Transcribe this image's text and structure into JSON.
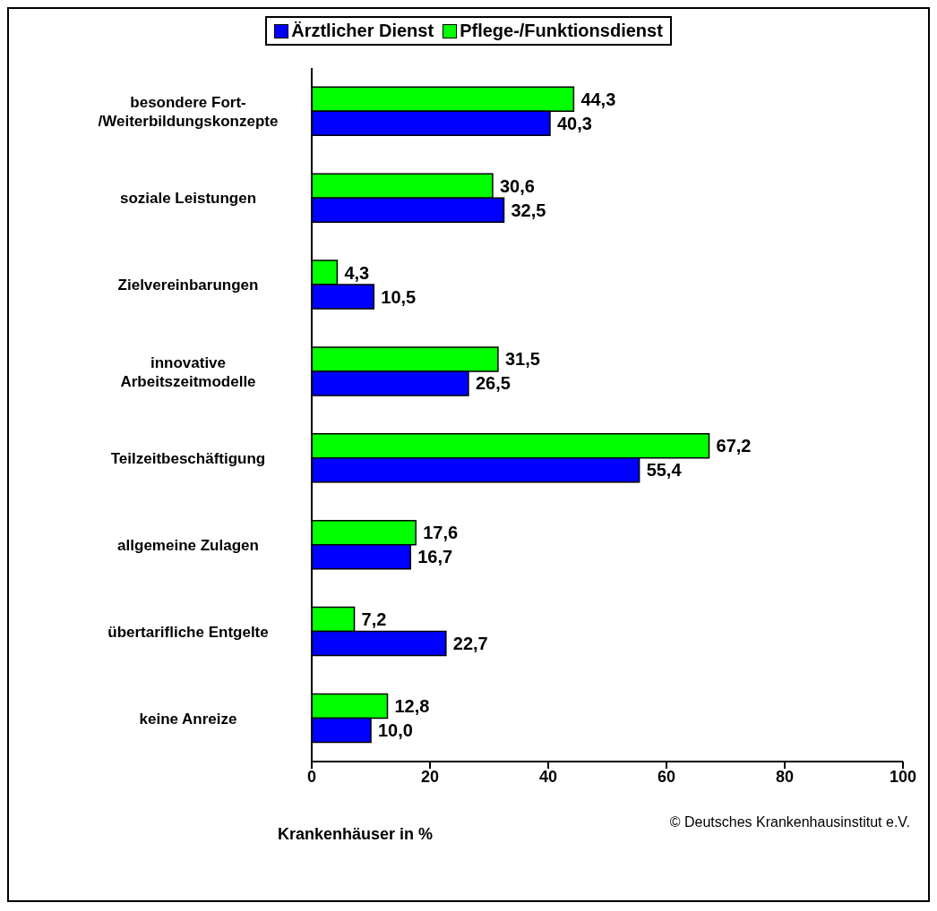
{
  "chart_data": {
    "type": "bar",
    "orientation": "horizontal",
    "xlabel": "Krankenhäuser in %",
    "categories": [
      "besondere Fort-/Weiterbildungskonzepte",
      "soziale Leistungen",
      "Zielvereinbarungen",
      "innovative Arbeitszeitmodelle",
      "Teilzeitbeschäftigung",
      "allgemeine Zulagen",
      "übertarifliche Entgelte",
      "keine Anreize"
    ],
    "series": [
      {
        "name": "Ärztlicher Dienst",
        "color": "#0000ff",
        "values": [
          40.3,
          32.5,
          10.5,
          26.5,
          55.4,
          16.7,
          22.7,
          10.0
        ],
        "value_labels": [
          "40,3",
          "32,5",
          "10,5",
          "26,5",
          "55,4",
          "16,7",
          "22,7",
          "10,0"
        ]
      },
      {
        "name": "Pflege-/Funktionsdienst",
        "color": "#00ff00",
        "values": [
          44.3,
          30.6,
          4.3,
          31.5,
          67.2,
          17.6,
          7.2,
          12.8
        ],
        "value_labels": [
          "44,3",
          "30,6",
          "4,3",
          "31,5",
          "67,2",
          "17,6",
          "7,2",
          "12,8"
        ]
      }
    ],
    "xlim": [
      0,
      100
    ],
    "xticks": [
      0,
      20,
      40,
      60,
      80,
      100
    ],
    "grid": false,
    "legend": "top",
    "annotations": [
      "© Deutsches Krankenhausinstitut e.V."
    ]
  }
}
